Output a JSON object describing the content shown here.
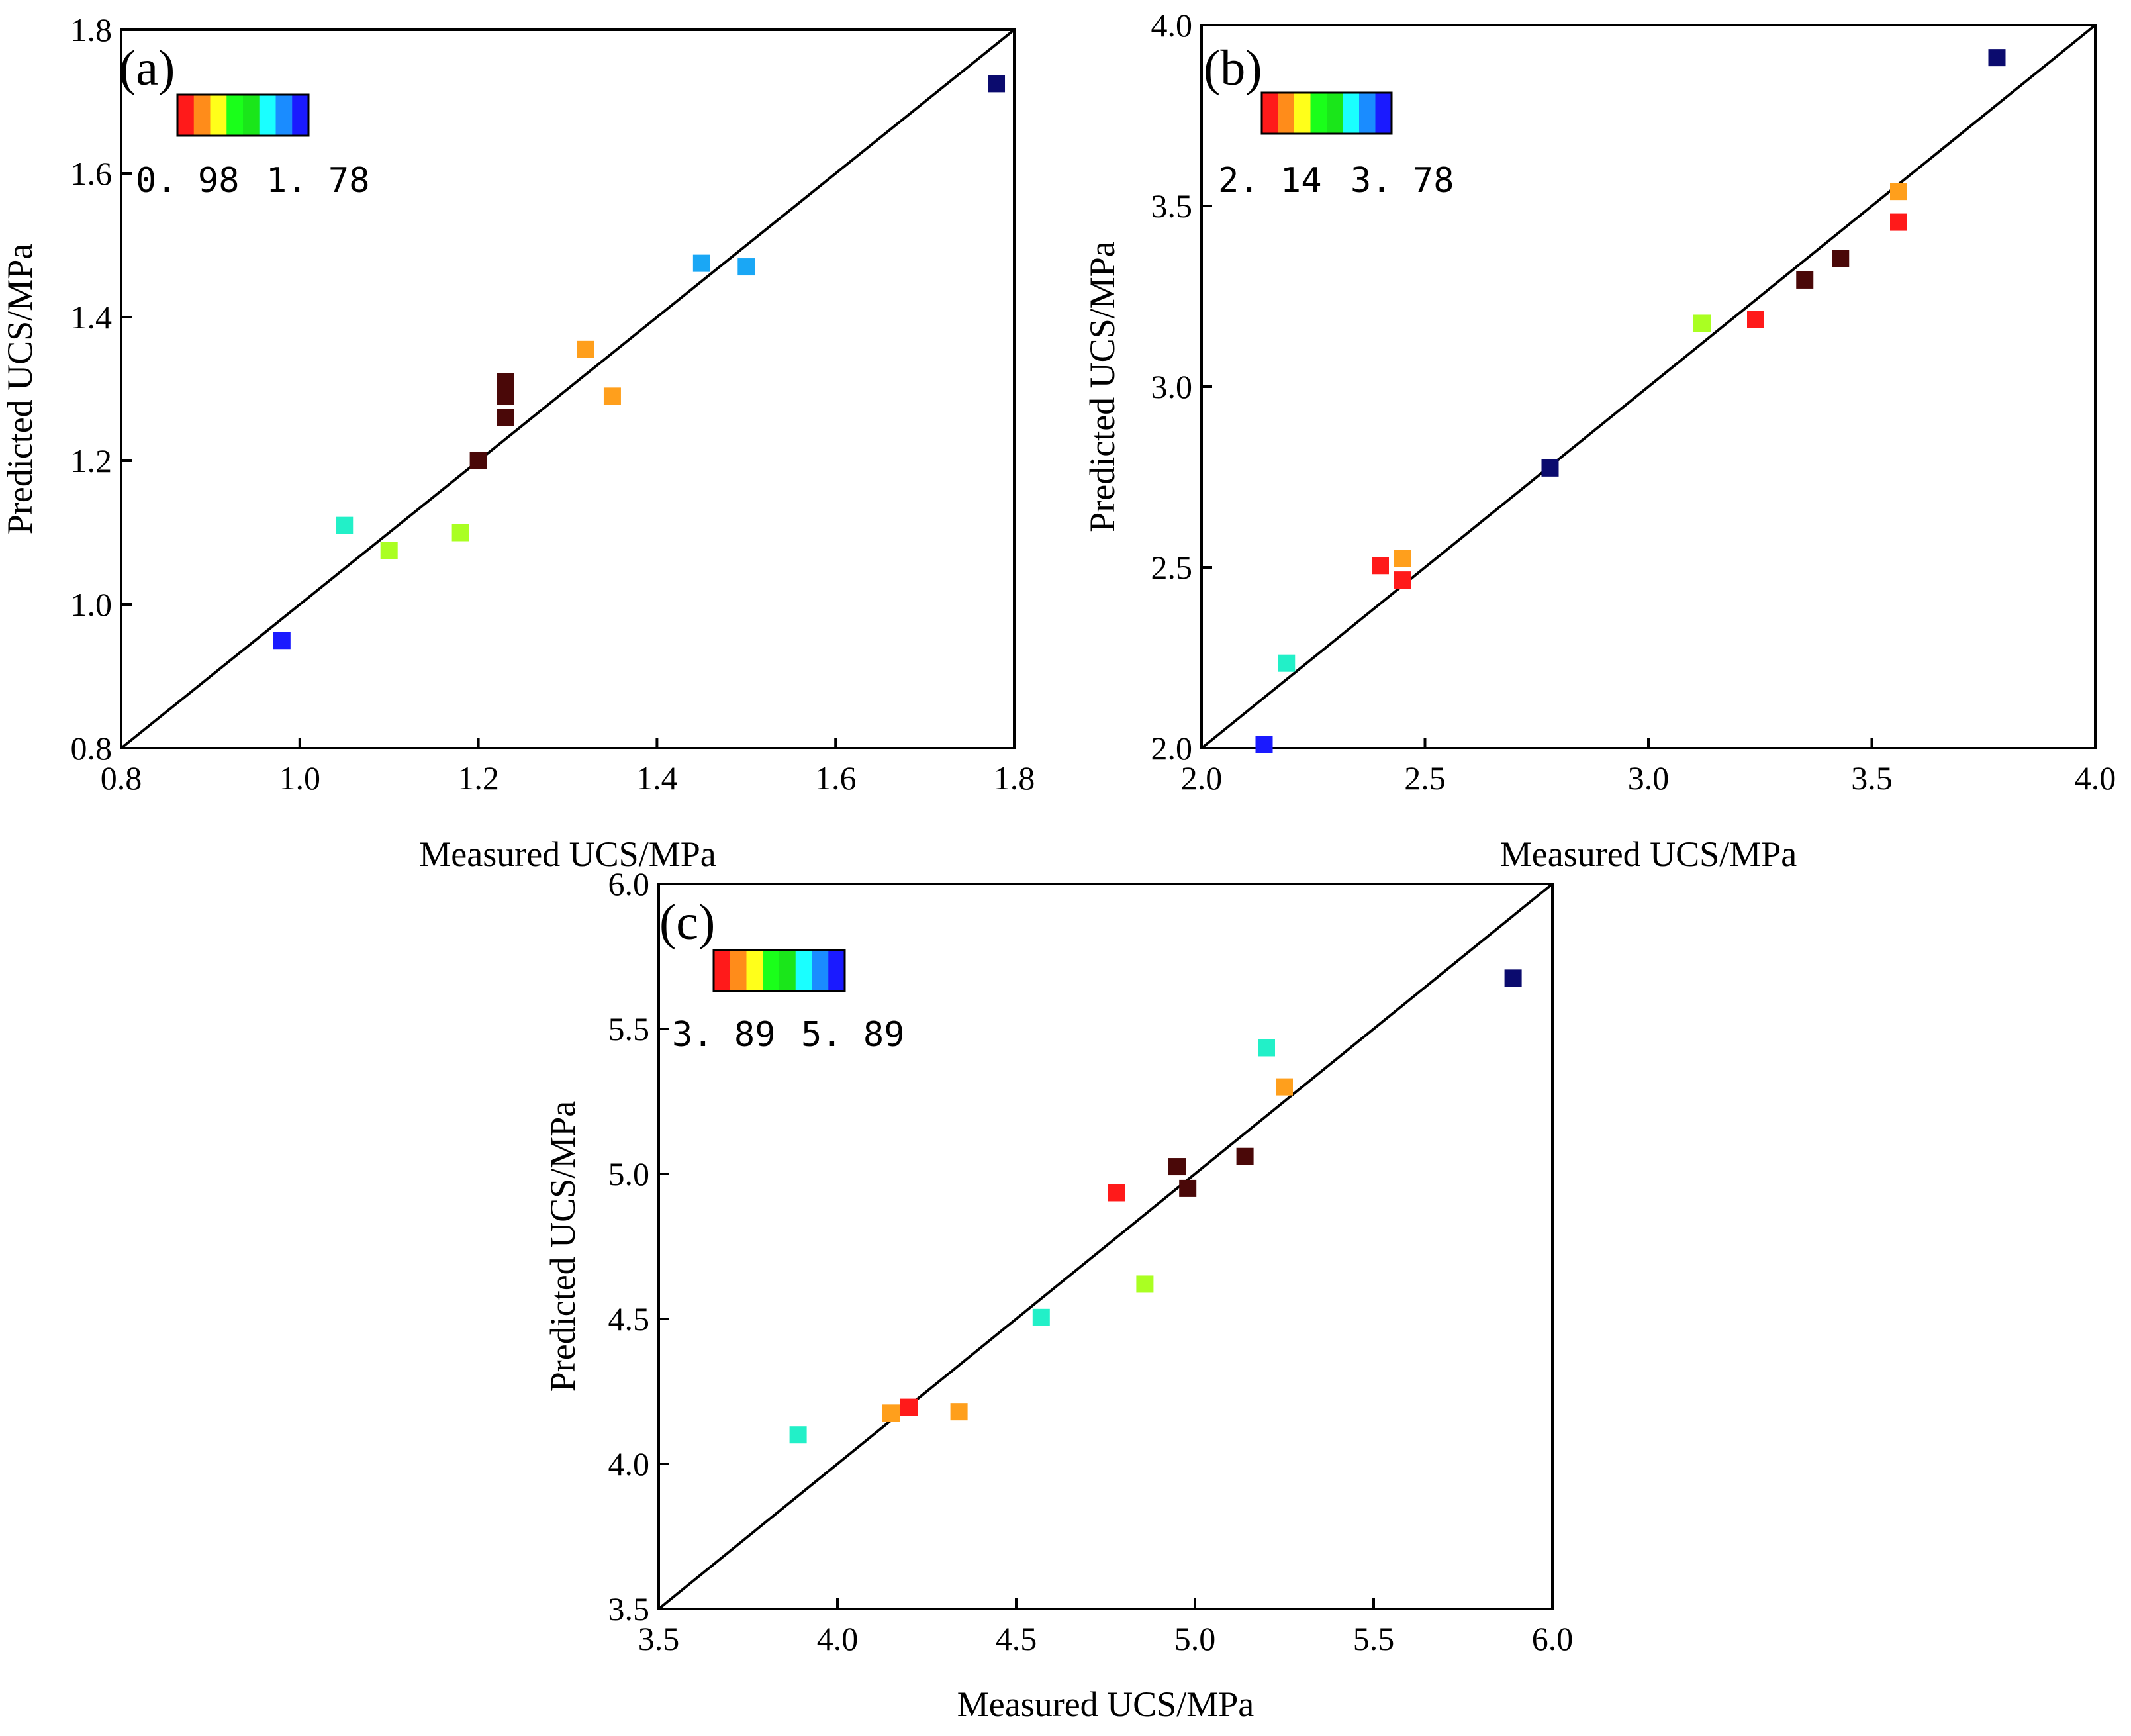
{
  "chart_data": [
    {
      "type": "scatter",
      "panel_label": "(a)",
      "xlabel": "Measured UCS/MPa",
      "ylabel": "Predicted UCS/MPa",
      "xlim": [
        0.8,
        1.8
      ],
      "ylim": [
        0.8,
        1.8
      ],
      "xticks": [
        "0.8",
        "1.0",
        "1.2",
        "1.4",
        "1.6",
        "1.8"
      ],
      "yticks": [
        "0.8",
        "1.0",
        "1.2",
        "1.4",
        "1.6",
        "1.8"
      ],
      "reference_line": "y = x",
      "colorbar": {
        "min_label": "0. 98",
        "max_label": "1. 78",
        "min": 0.98,
        "max": 1.78
      },
      "points": [
        {
          "x": 0.98,
          "y": 0.95,
          "color": "#1a1aff"
        },
        {
          "x": 1.05,
          "y": 1.11,
          "color": "#22f0c8"
        },
        {
          "x": 1.1,
          "y": 1.075,
          "color": "#aaff22"
        },
        {
          "x": 1.18,
          "y": 1.1,
          "color": "#aaff22"
        },
        {
          "x": 1.2,
          "y": 1.2,
          "color": "#4a0808"
        },
        {
          "x": 1.23,
          "y": 1.26,
          "color": "#4a0808"
        },
        {
          "x": 1.23,
          "y": 1.29,
          "color": "#4a0808"
        },
        {
          "x": 1.23,
          "y": 1.31,
          "color": "#4a0808"
        },
        {
          "x": 1.32,
          "y": 1.355,
          "color": "#ff9f1c"
        },
        {
          "x": 1.35,
          "y": 1.29,
          "color": "#ff9f1c"
        },
        {
          "x": 1.45,
          "y": 1.475,
          "color": "#1aa7f5"
        },
        {
          "x": 1.5,
          "y": 1.47,
          "color": "#1aa7f5"
        },
        {
          "x": 1.78,
          "y": 1.725,
          "color": "#0b0b6e"
        }
      ]
    },
    {
      "type": "scatter",
      "panel_label": "(b)",
      "xlabel": "Measured UCS/MPa",
      "ylabel": "Predicted UCS/MPa",
      "xlim": [
        2.0,
        4.0
      ],
      "ylim": [
        2.0,
        4.0
      ],
      "xticks": [
        "2.0",
        "2.5",
        "3.0",
        "3.5",
        "4.0"
      ],
      "yticks": [
        "2.0",
        "2.5",
        "3.0",
        "3.5",
        "4.0"
      ],
      "reference_line": "y = x",
      "colorbar": {
        "min_label": "2. 14",
        "max_label": "3. 78",
        "min": 2.14,
        "max": 3.78
      },
      "points": [
        {
          "x": 2.14,
          "y": 2.01,
          "color": "#1a1aff"
        },
        {
          "x": 2.19,
          "y": 2.235,
          "color": "#22f0c8"
        },
        {
          "x": 2.4,
          "y": 2.505,
          "color": "#ff1a1a"
        },
        {
          "x": 2.45,
          "y": 2.525,
          "color": "#ff9f1c"
        },
        {
          "x": 2.45,
          "y": 2.465,
          "color": "#ff1a1a"
        },
        {
          "x": 2.78,
          "y": 2.775,
          "color": "#0b0b6e"
        },
        {
          "x": 3.12,
          "y": 3.175,
          "color": "#aaff22"
        },
        {
          "x": 3.24,
          "y": 3.185,
          "color": "#ff1a1a"
        },
        {
          "x": 3.35,
          "y": 3.295,
          "color": "#4a0808"
        },
        {
          "x": 3.43,
          "y": 3.355,
          "color": "#4a0808"
        },
        {
          "x": 3.56,
          "y": 3.455,
          "color": "#ff1a1a"
        },
        {
          "x": 3.56,
          "y": 3.54,
          "color": "#ff9f1c"
        },
        {
          "x": 3.78,
          "y": 3.91,
          "color": "#0b0b6e"
        }
      ]
    },
    {
      "type": "scatter",
      "panel_label": "(c)",
      "xlabel": "Measured UCS/MPa",
      "ylabel": "Predicted UCS/MPa",
      "xlim": [
        3.5,
        6.0
      ],
      "ylim": [
        3.5,
        6.0
      ],
      "xticks": [
        "3.5",
        "4.0",
        "4.5",
        "5.0",
        "5.5",
        "6.0"
      ],
      "yticks": [
        "3.5",
        "4.0",
        "4.5",
        "5.0",
        "5.5",
        "6.0"
      ],
      "reference_line": "y = x",
      "colorbar": {
        "min_label": "3. 89",
        "max_label": "5. 89",
        "min": 3.89,
        "max": 5.89
      },
      "points": [
        {
          "x": 3.89,
          "y": 4.1,
          "color": "#22f0c8"
        },
        {
          "x": 4.15,
          "y": 4.175,
          "color": "#ff9f1c"
        },
        {
          "x": 4.2,
          "y": 4.195,
          "color": "#ff1a1a"
        },
        {
          "x": 4.34,
          "y": 4.18,
          "color": "#ff9f1c"
        },
        {
          "x": 4.57,
          "y": 4.505,
          "color": "#22f0c8"
        },
        {
          "x": 4.78,
          "y": 4.935,
          "color": "#ff1a1a"
        },
        {
          "x": 4.86,
          "y": 4.62,
          "color": "#aaff22"
        },
        {
          "x": 4.95,
          "y": 5.025,
          "color": "#4a0808"
        },
        {
          "x": 4.98,
          "y": 4.95,
          "color": "#4a0808"
        },
        {
          "x": 5.14,
          "y": 5.06,
          "color": "#4a0808"
        },
        {
          "x": 5.2,
          "y": 5.435,
          "color": "#22f0c8"
        },
        {
          "x": 5.25,
          "y": 5.3,
          "color": "#ff9f1c"
        },
        {
          "x": 5.89,
          "y": 5.675,
          "color": "#0b0b6e"
        }
      ]
    }
  ],
  "colorbar_palette": [
    "#ff1a1a",
    "#ff8c1a",
    "#ffff1a",
    "#1aff1a",
    "#1ae61a",
    "#1affff",
    "#1a8cff",
    "#1a1aff"
  ]
}
